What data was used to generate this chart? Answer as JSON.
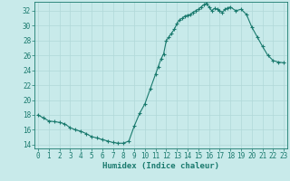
{
  "x": [
    0,
    0.5,
    1,
    1.5,
    2,
    2.5,
    3,
    3.5,
    4,
    4.5,
    5,
    5.5,
    6,
    6.5,
    7,
    7.5,
    8,
    8.5,
    9,
    9.5,
    10,
    10.5,
    11,
    11.25,
    11.5,
    11.75,
    12,
    12.25,
    12.5,
    12.75,
    13,
    13.25,
    13.5,
    13.75,
    14,
    14.25,
    14.5,
    14.75,
    15,
    15.25,
    15.5,
    15.75,
    16,
    16.25,
    16.5,
    16.75,
    17,
    17.25,
    17.5,
    17.75,
    18,
    18.5,
    19,
    19.5,
    20,
    20.5,
    21,
    21.5,
    22,
    22.5,
    23
  ],
  "y": [
    18.0,
    17.6,
    17.2,
    17.1,
    17.0,
    16.8,
    16.3,
    16.0,
    15.8,
    15.5,
    15.1,
    14.9,
    14.7,
    14.5,
    14.3,
    14.2,
    14.2,
    14.5,
    16.5,
    18.2,
    19.5,
    21.5,
    23.5,
    24.5,
    25.5,
    26.2,
    28.0,
    28.5,
    29.0,
    29.5,
    30.3,
    30.8,
    31.0,
    31.3,
    31.4,
    31.5,
    31.8,
    32.0,
    32.2,
    32.5,
    32.8,
    33.0,
    32.5,
    32.0,
    32.3,
    32.2,
    32.0,
    31.8,
    32.2,
    32.4,
    32.5,
    32.0,
    32.2,
    31.5,
    29.8,
    28.5,
    27.2,
    26.0,
    25.3,
    25.1,
    25.0
  ],
  "line_color": "#1a7a6e",
  "marker": "+",
  "markersize": 3.0,
  "linewidth": 0.8,
  "bg_color": "#c8eaea",
  "grid_color": "#b0d8d8",
  "tick_color": "#1a7a6e",
  "xlabel": "Humidex (Indice chaleur)",
  "ylabel_ticks": [
    14,
    16,
    18,
    20,
    22,
    24,
    26,
    28,
    30,
    32
  ],
  "xlim": [
    -0.3,
    23.3
  ],
  "ylim": [
    13.5,
    33.2
  ],
  "xticks": [
    0,
    1,
    2,
    3,
    4,
    5,
    6,
    7,
    8,
    9,
    10,
    11,
    12,
    13,
    14,
    15,
    16,
    17,
    18,
    19,
    20,
    21,
    22,
    23
  ],
  "xlabel_fontsize": 6.5,
  "tick_fontsize": 5.5
}
